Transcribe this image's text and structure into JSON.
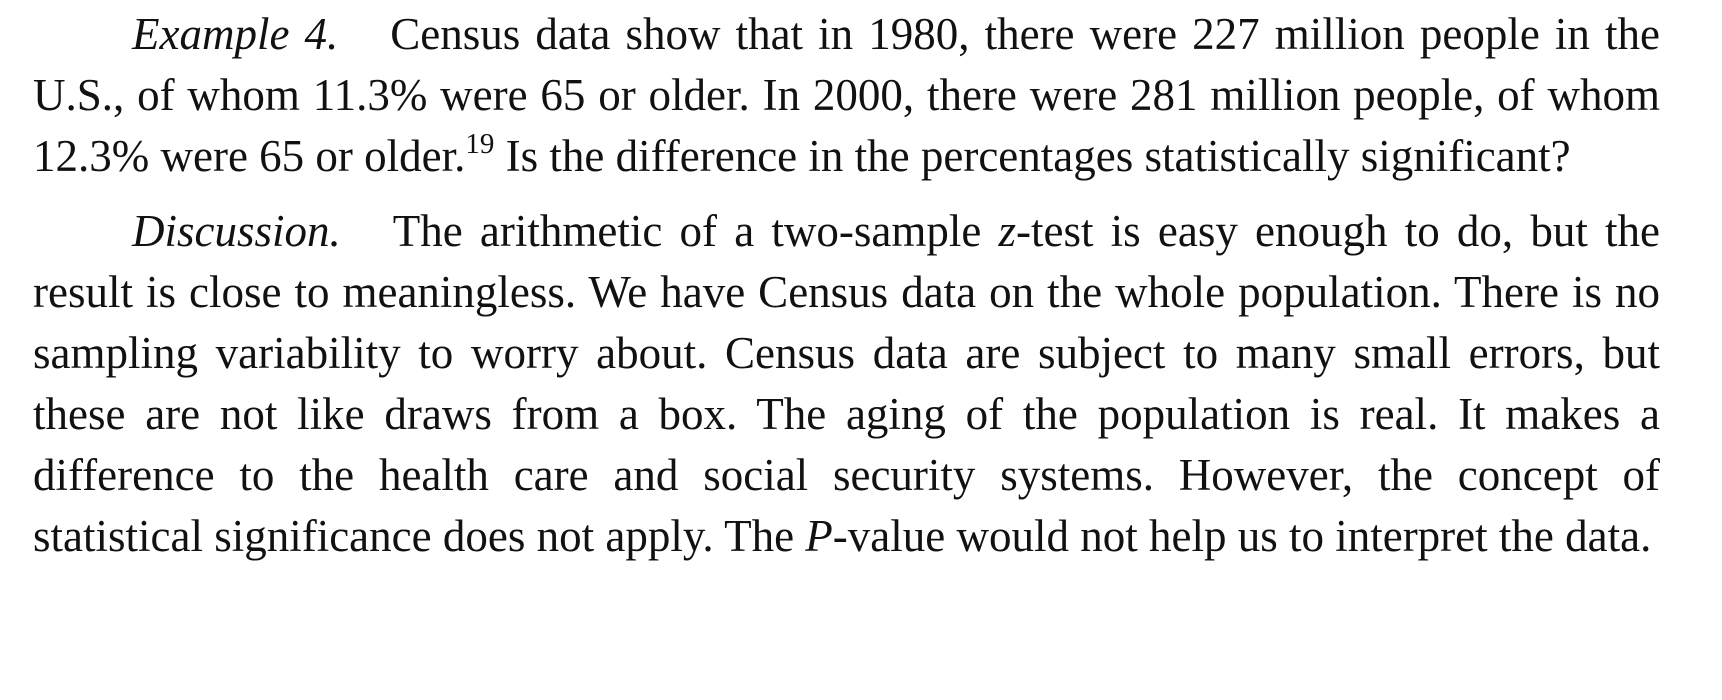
{
  "example": {
    "label": "Example 4.",
    "text_part1": "Census data show that in 1980, there were 227 million people in the U.S., of whom 11.3% were 65 or older. In 2000, there were 281 million people, of whom 12.3% were 65 or older.",
    "footnote_ref": "19",
    "text_part2": " Is the difference in the percentages statistically significant?"
  },
  "discussion": {
    "label": "Discussion.",
    "text_part1": "The arithmetic of a two-sample ",
    "z_symbol": "z",
    "text_part2": "-test is easy enough to do, but the result is close to meaningless. We have Census data on the whole population. There is no sampling variability to worry about. Census data are subject to many small errors, but these are not like draws from a box. The aging of the population is real. It makes a difference to the health care and social security systems. However, the concept of statistical significance does not apply. The ",
    "p_symbol": "P",
    "text_part3": "-value would not help us to interpret the data."
  }
}
